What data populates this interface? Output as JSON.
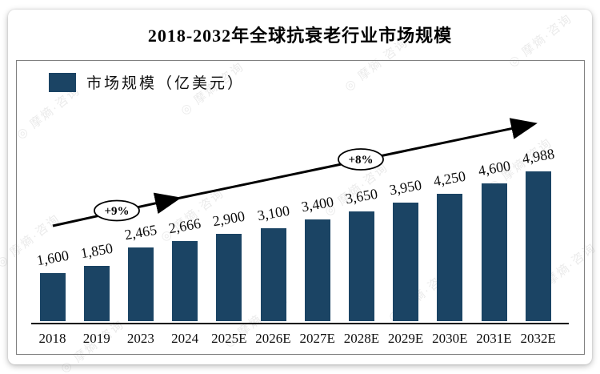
{
  "title": "2018-2032年全球抗衰老行业市场规模",
  "legend": {
    "label": "市场规模（亿美元）"
  },
  "colors": {
    "bar": "#1B4464",
    "axis": "#000000",
    "plot_border": "#7f7f7f",
    "annotation_fill": "#ffffff",
    "annotation_stroke": "#000000"
  },
  "watermark": {
    "text": "◎ 摩熵·咨询"
  },
  "chart_data": {
    "type": "bar",
    "title": "2018-2032年全球抗衰老行业市场规模",
    "series_name": "市场规模（亿美元）",
    "unit": "亿美元",
    "categories": [
      "2018",
      "2019",
      "2023",
      "2024",
      "2025E",
      "2026E",
      "2027E",
      "2028E",
      "2029E",
      "2030E",
      "2031E",
      "2032E"
    ],
    "values": [
      1600,
      1850,
      2465,
      2666,
      2900,
      3100,
      3400,
      3650,
      3950,
      4250,
      4600,
      4988
    ],
    "value_labels": [
      "1,600",
      "1,850",
      "2,465",
      "2,666",
      "2,900",
      "3,100",
      "3,400",
      "3,650",
      "3,950",
      "4,250",
      "4,600",
      "4,988"
    ],
    "ylim": [
      0,
      5300
    ],
    "grid": false,
    "y_axis_visible": false,
    "legend_position": "top-left",
    "annotations": [
      {
        "label": "+9%",
        "type": "growth-rate",
        "placement": "left segment of trend arrow"
      },
      {
        "label": "+8%",
        "type": "growth-rate",
        "placement": "right segment of trend arrow"
      }
    ]
  }
}
